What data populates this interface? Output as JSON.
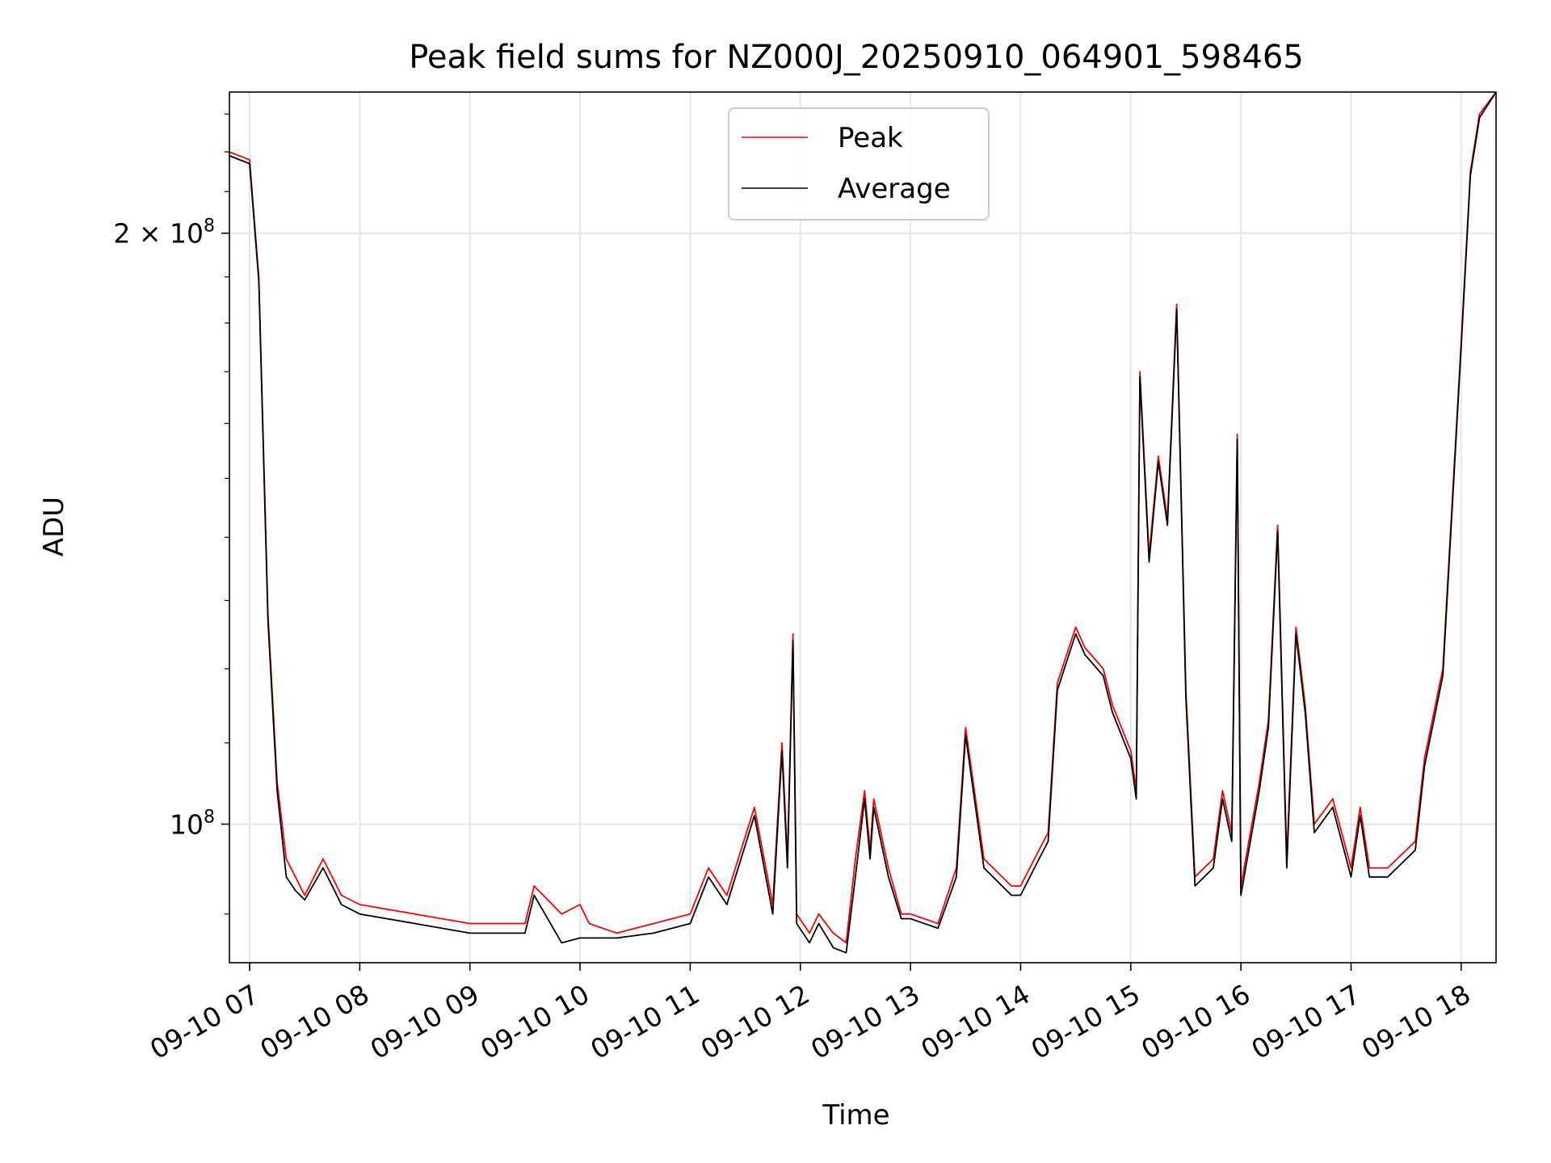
{
  "chart_data": {
    "type": "line",
    "title": "Peak field sums for NZ000J_20250910_064901_598465",
    "xlabel": "Time",
    "ylabel": "ADU",
    "yscale": "log",
    "ylim": [
      85000000,
      236000000
    ],
    "xlim": [
      "2025-09-10 06:49",
      "2025-09-10 18:19"
    ],
    "x_ticks": [
      {
        "t": "2025-09-10 07:00",
        "label": "09-10 07"
      },
      {
        "t": "2025-09-10 08:00",
        "label": "09-10 08"
      },
      {
        "t": "2025-09-10 09:00",
        "label": "09-10 09"
      },
      {
        "t": "2025-09-10 10:00",
        "label": "09-10 10"
      },
      {
        "t": "2025-09-10 11:00",
        "label": "09-10 11"
      },
      {
        "t": "2025-09-10 12:00",
        "label": "09-10 12"
      },
      {
        "t": "2025-09-10 13:00",
        "label": "09-10 13"
      },
      {
        "t": "2025-09-10 14:00",
        "label": "09-10 14"
      },
      {
        "t": "2025-09-10 15:00",
        "label": "09-10 15"
      },
      {
        "t": "2025-09-10 16:00",
        "label": "09-10 16"
      },
      {
        "t": "2025-09-10 17:00",
        "label": "09-10 17"
      },
      {
        "t": "2025-09-10 18:00",
        "label": "09-10 18"
      }
    ],
    "y_ticks": [
      {
        "value": 100000000,
        "mantissa": "",
        "exponent": "8",
        "label": "10⁸"
      },
      {
        "value": 200000000,
        "mantissa": "2 × ",
        "exponent": "8",
        "label": "2 × 10⁸"
      }
    ],
    "grid": true,
    "legend_position": "top-center",
    "series": [
      {
        "name": "Peak",
        "color": "#ff0000",
        "x": [
          "2025-09-10 06:49",
          "2025-09-10 07:00",
          "2025-09-10 07:05",
          "2025-09-10 07:10",
          "2025-09-10 07:15",
          "2025-09-10 07:20",
          "2025-09-10 07:25",
          "2025-09-10 07:30",
          "2025-09-10 07:40",
          "2025-09-10 07:45",
          "2025-09-10 07:50",
          "2025-09-10 08:00",
          "2025-09-10 08:30",
          "2025-09-10 09:00",
          "2025-09-10 09:30",
          "2025-09-10 09:35",
          "2025-09-10 09:50",
          "2025-09-10 10:00",
          "2025-09-10 10:05",
          "2025-09-10 10:20",
          "2025-09-10 10:40",
          "2025-09-10 11:00",
          "2025-09-10 11:10",
          "2025-09-10 11:20",
          "2025-09-10 11:35",
          "2025-09-10 11:45",
          "2025-09-10 11:50",
          "2025-09-10 11:53",
          "2025-09-10 11:56",
          "2025-09-10 11:58",
          "2025-09-10 12:05",
          "2025-09-10 12:10",
          "2025-09-10 12:18",
          "2025-09-10 12:25",
          "2025-09-10 12:30",
          "2025-09-10 12:35",
          "2025-09-10 12:38",
          "2025-09-10 12:40",
          "2025-09-10 12:48",
          "2025-09-10 12:55",
          "2025-09-10 13:00",
          "2025-09-10 13:15",
          "2025-09-10 13:25",
          "2025-09-10 13:30",
          "2025-09-10 13:40",
          "2025-09-10 13:55",
          "2025-09-10 14:00",
          "2025-09-10 14:10",
          "2025-09-10 14:15",
          "2025-09-10 14:20",
          "2025-09-10 14:30",
          "2025-09-10 14:35",
          "2025-09-10 14:45",
          "2025-09-10 14:50",
          "2025-09-10 15:00",
          "2025-09-10 15:03",
          "2025-09-10 15:05",
          "2025-09-10 15:10",
          "2025-09-10 15:15",
          "2025-09-10 15:20",
          "2025-09-10 15:25",
          "2025-09-10 15:30",
          "2025-09-10 15:35",
          "2025-09-10 15:45",
          "2025-09-10 15:50",
          "2025-09-10 15:55",
          "2025-09-10 15:58",
          "2025-09-10 16:00",
          "2025-09-10 16:10",
          "2025-09-10 16:15",
          "2025-09-10 16:20",
          "2025-09-10 16:25",
          "2025-09-10 16:30",
          "2025-09-10 16:35",
          "2025-09-10 16:40",
          "2025-09-10 16:50",
          "2025-09-10 17:00",
          "2025-09-10 17:05",
          "2025-09-10 17:10",
          "2025-09-10 17:20",
          "2025-09-10 17:35",
          "2025-09-10 17:40",
          "2025-09-10 17:50",
          "2025-09-10 18:00",
          "2025-09-10 18:05",
          "2025-09-10 18:10",
          "2025-09-10 18:19"
        ],
        "values": [
          220000000,
          218000000,
          190000000,
          128000000,
          105000000,
          96000000,
          94000000,
          92000000,
          96000000,
          94000000,
          92000000,
          91000000,
          90000000,
          89000000,
          89000000,
          93000000,
          90000000,
          91000000,
          89000000,
          88000000,
          89000000,
          90000000,
          95000000,
          92000000,
          102000000,
          91000000,
          110000000,
          96000000,
          125000000,
          90000000,
          88000000,
          90000000,
          88000000,
          87000000,
          96000000,
          104000000,
          97000000,
          103000000,
          95000000,
          90000000,
          90000000,
          89000000,
          95000000,
          112000000,
          96000000,
          93000000,
          93000000,
          97000000,
          99000000,
          118000000,
          126000000,
          123000000,
          120000000,
          115000000,
          109000000,
          104000000,
          170000000,
          137000000,
          154000000,
          143000000,
          184000000,
          117000000,
          94000000,
          96000000,
          104000000,
          99000000,
          158000000,
          93000000,
          105000000,
          113000000,
          142000000,
          96000000,
          126000000,
          115000000,
          100000000,
          103000000,
          95000000,
          102000000,
          95000000,
          95000000,
          98000000,
          108000000,
          120000000,
          176000000,
          215000000,
          230000000,
          236000000
        ]
      },
      {
        "name": "Average",
        "color": "#000000",
        "x": [
          "2025-09-10 06:49",
          "2025-09-10 07:00",
          "2025-09-10 07:05",
          "2025-09-10 07:10",
          "2025-09-10 07:15",
          "2025-09-10 07:20",
          "2025-09-10 07:25",
          "2025-09-10 07:30",
          "2025-09-10 07:40",
          "2025-09-10 07:45",
          "2025-09-10 07:50",
          "2025-09-10 08:00",
          "2025-09-10 08:30",
          "2025-09-10 09:00",
          "2025-09-10 09:30",
          "2025-09-10 09:35",
          "2025-09-10 09:50",
          "2025-09-10 10:00",
          "2025-09-10 10:05",
          "2025-09-10 10:20",
          "2025-09-10 10:40",
          "2025-09-10 11:00",
          "2025-09-10 11:10",
          "2025-09-10 11:20",
          "2025-09-10 11:35",
          "2025-09-10 11:45",
          "2025-09-10 11:50",
          "2025-09-10 11:53",
          "2025-09-10 11:56",
          "2025-09-10 11:58",
          "2025-09-10 12:05",
          "2025-09-10 12:10",
          "2025-09-10 12:18",
          "2025-09-10 12:25",
          "2025-09-10 12:30",
          "2025-09-10 12:35",
          "2025-09-10 12:38",
          "2025-09-10 12:40",
          "2025-09-10 12:48",
          "2025-09-10 12:55",
          "2025-09-10 13:00",
          "2025-09-10 13:15",
          "2025-09-10 13:25",
          "2025-09-10 13:30",
          "2025-09-10 13:40",
          "2025-09-10 13:55",
          "2025-09-10 14:00",
          "2025-09-10 14:10",
          "2025-09-10 14:15",
          "2025-09-10 14:20",
          "2025-09-10 14:30",
          "2025-09-10 14:35",
          "2025-09-10 14:45",
          "2025-09-10 14:50",
          "2025-09-10 15:00",
          "2025-09-10 15:03",
          "2025-09-10 15:05",
          "2025-09-10 15:10",
          "2025-09-10 15:15",
          "2025-09-10 15:20",
          "2025-09-10 15:25",
          "2025-09-10 15:30",
          "2025-09-10 15:35",
          "2025-09-10 15:45",
          "2025-09-10 15:50",
          "2025-09-10 15:55",
          "2025-09-10 15:58",
          "2025-09-10 16:00",
          "2025-09-10 16:10",
          "2025-09-10 16:15",
          "2025-09-10 16:20",
          "2025-09-10 16:25",
          "2025-09-10 16:30",
          "2025-09-10 16:35",
          "2025-09-10 16:40",
          "2025-09-10 16:50",
          "2025-09-10 17:00",
          "2025-09-10 17:05",
          "2025-09-10 17:10",
          "2025-09-10 17:20",
          "2025-09-10 17:35",
          "2025-09-10 17:40",
          "2025-09-10 17:50",
          "2025-09-10 18:00",
          "2025-09-10 18:05",
          "2025-09-10 18:10",
          "2025-09-10 18:19"
        ],
        "values": [
          219000000,
          217000000,
          189000000,
          127000000,
          104000000,
          94000000,
          92500000,
          91500000,
          95000000,
          93000000,
          91000000,
          90000000,
          89000000,
          88000000,
          88000000,
          92000000,
          87000000,
          87500000,
          87500000,
          87500000,
          88000000,
          89000000,
          94000000,
          91000000,
          101000000,
          90000000,
          109000000,
          95000000,
          124000000,
          89000000,
          87000000,
          89000000,
          86500000,
          86000000,
          94000000,
          103000000,
          96000000,
          102000000,
          94000000,
          89500000,
          89500000,
          88500000,
          94000000,
          111000000,
          95000000,
          92000000,
          92000000,
          96000000,
          98000000,
          117000000,
          125000000,
          122000000,
          119000000,
          114000000,
          108000000,
          103000000,
          169000000,
          136000000,
          153000000,
          142000000,
          183000000,
          116000000,
          93000000,
          95000000,
          103000000,
          98000000,
          157000000,
          92000000,
          104000000,
          112000000,
          141000000,
          95000000,
          125000000,
          114000000,
          99000000,
          102000000,
          94000000,
          101000000,
          94000000,
          94000000,
          97000000,
          107000000,
          119000000,
          175000000,
          214000000,
          229000000,
          236000000
        ]
      }
    ]
  }
}
